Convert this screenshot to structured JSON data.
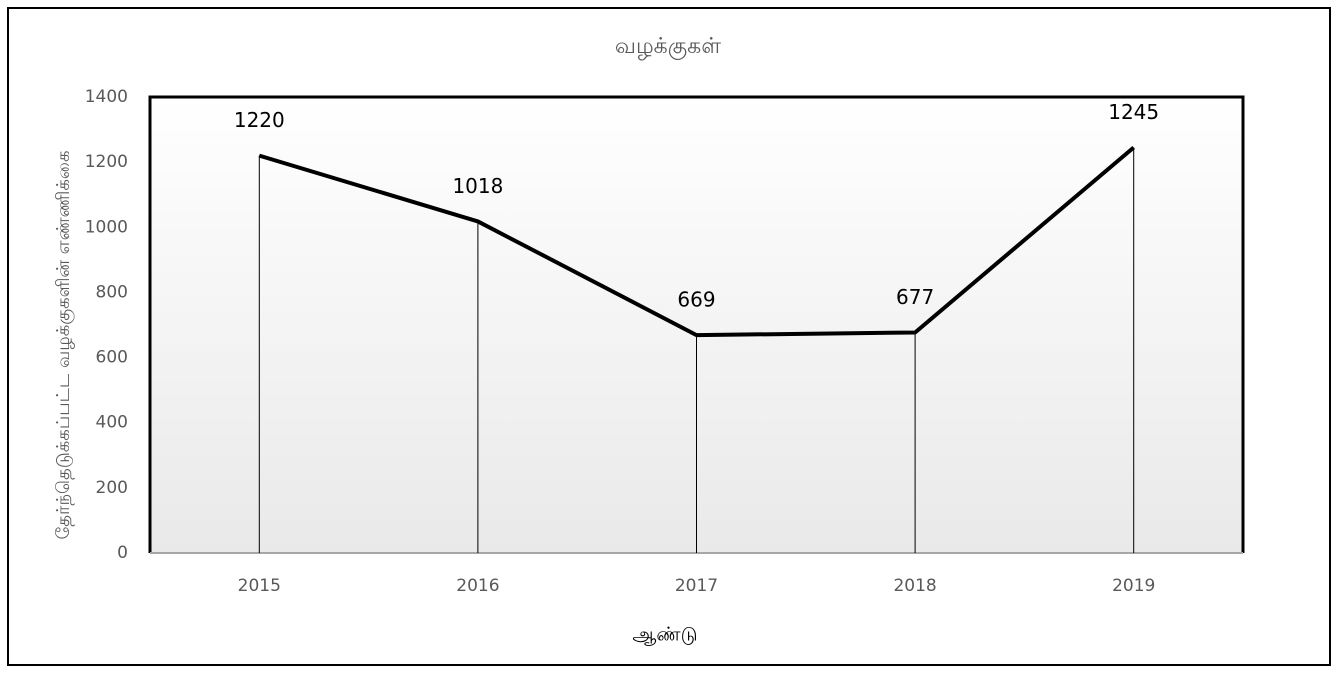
{
  "chart_data": {
    "type": "line",
    "title": "வழக்குகள்",
    "x_label": "ஆண்டு",
    "y_label": "தேர்ந்தெடுக்கப்பட்ட வழக்குகளின் எண்ணிக்கை",
    "categories": [
      "2015",
      "2016",
      "2017",
      "2018",
      "2019"
    ],
    "values": [
      1220,
      1018,
      669,
      677,
      1245
    ],
    "color": "#000000",
    "ylim": [
      0,
      1400
    ],
    "yticks": [
      0,
      200,
      400,
      600,
      800,
      1000,
      1200,
      1400
    ],
    "grid": false
  }
}
